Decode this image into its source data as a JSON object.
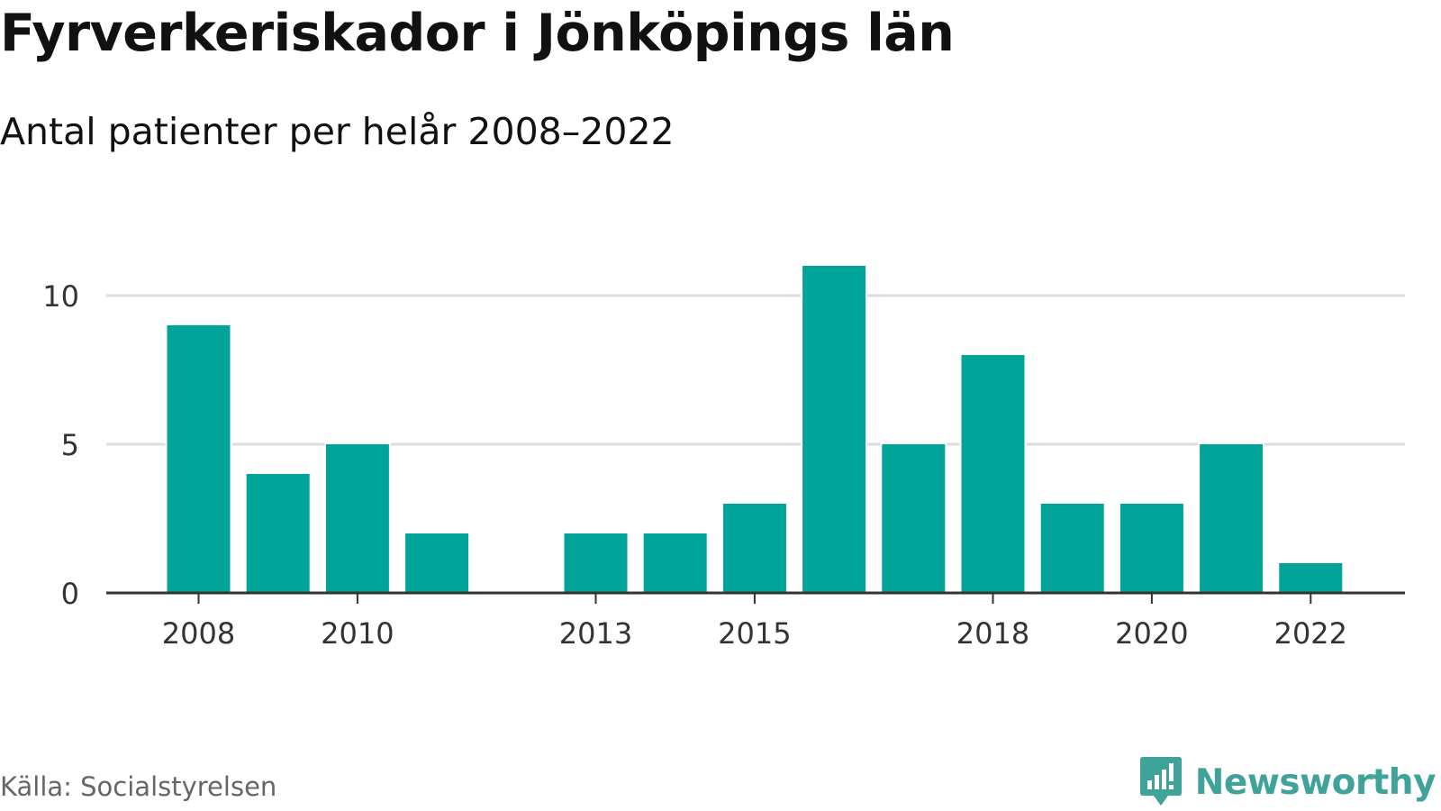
{
  "title": "Fyrverkeriskador i Jönköpings län",
  "subtitle": "Antal patienter per helår 2008–2022",
  "source": "Källa: Socialstyrelsen",
  "brand": {
    "name": "Newsworthy",
    "icon": "newsworthy-logo-icon",
    "color": "#3fa39a"
  },
  "colors": {
    "bar": "#00a499",
    "grid": "#dddddd",
    "axis": "#333333",
    "tick_text": "#333333"
  },
  "chart_data": {
    "type": "bar",
    "categories": [
      "2008",
      "2009",
      "2010",
      "2011",
      "2012",
      "2013",
      "2014",
      "2015",
      "2016",
      "2017",
      "2018",
      "2019",
      "2020",
      "2021",
      "2022"
    ],
    "values": [
      9,
      4,
      5,
      2,
      0,
      2,
      2,
      3,
      11,
      5,
      8,
      3,
      3,
      5,
      1
    ],
    "x_tick_labels": [
      "2008",
      "2010",
      "2013",
      "2015",
      "2018",
      "2020",
      "2022"
    ],
    "y_ticks": [
      0,
      5,
      10
    ],
    "ylim": [
      0,
      11
    ],
    "grid": true,
    "title": "Fyrverkeriskador i Jönköpings län",
    "subtitle": "Antal patienter per helår 2008–2022",
    "xlabel": "",
    "ylabel": ""
  }
}
